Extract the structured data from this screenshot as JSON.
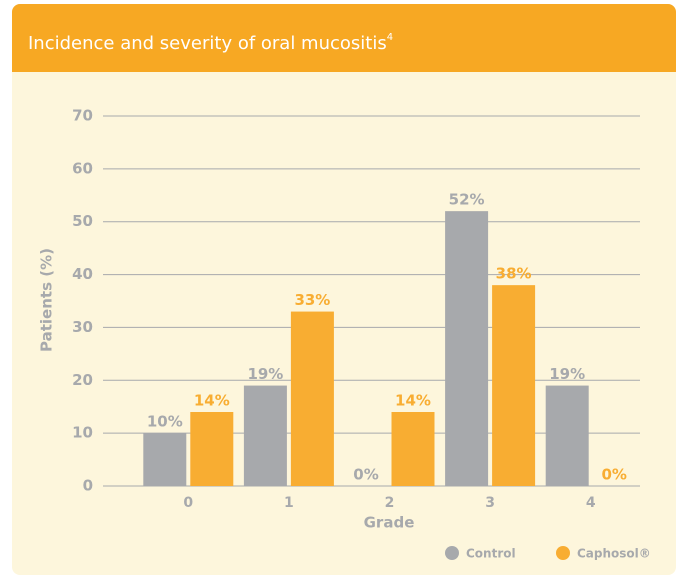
{
  "chart_data": {
    "type": "bar",
    "title": "Incidence and severity of oral mucositis",
    "title_superscript": "4",
    "x_label": "Grade",
    "y_label": "Patients (%)",
    "categories": [
      "0",
      "1",
      "2",
      "3",
      "4"
    ],
    "series": [
      {
        "name": "Control",
        "color": "#a7a9ac",
        "values": [
          10,
          19,
          0,
          52,
          19
        ],
        "value_labels": [
          "10%",
          "19%",
          "0%",
          "52%",
          "19%"
        ]
      },
      {
        "name": "Caphosol®",
        "color": "#f8ad32",
        "values": [
          14,
          33,
          14,
          38,
          0
        ],
        "value_labels": [
          "14%",
          "33%",
          "14%",
          "38%",
          "0%"
        ]
      }
    ],
    "ylim": [
      0,
      70
    ],
    "yticks": [
      0,
      10,
      20,
      30,
      40,
      50,
      60,
      70
    ],
    "grid": true,
    "legend": "bottom-right"
  }
}
